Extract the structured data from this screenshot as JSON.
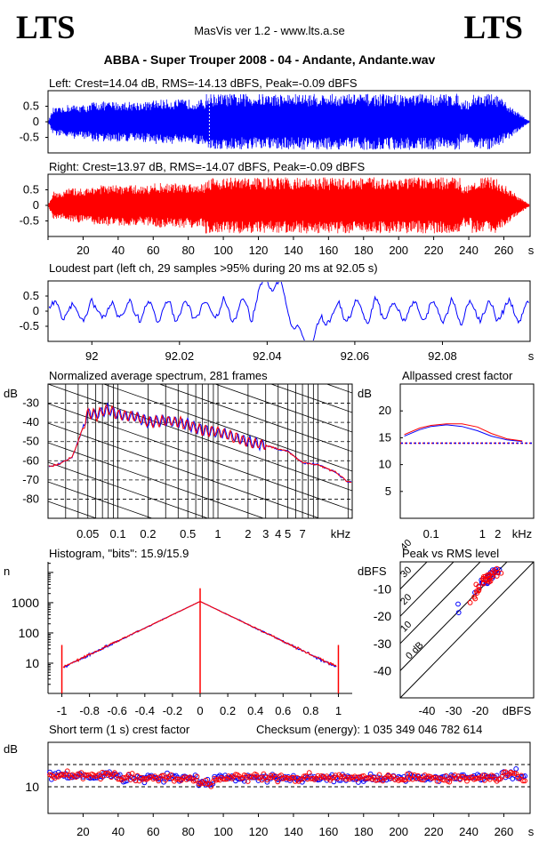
{
  "header": {
    "logo_left": "LTS",
    "logo_right": "LTS",
    "app_title": "MasVis ver 1.2 - www.lts.a.se",
    "file_title": "ABBA - Super Trouper 2008 - 04 - Andante, Andante.wav"
  },
  "colors": {
    "left": "#0000ff",
    "right": "#ff0000",
    "grid": "#000000"
  },
  "chart_data": [
    {
      "type": "area",
      "id": "left_waveform",
      "title": "Left: Crest=14.04 dB, RMS=-14.13 dBFS, Peak=-0.09 dBFS",
      "ylim": [
        -1,
        1
      ],
      "xlim": [
        0,
        275
      ],
      "yticks": [
        "0.5",
        "0",
        "-0.5"
      ],
      "marker_x": 92.05
    },
    {
      "type": "area",
      "id": "right_waveform",
      "title": "Right: Crest=13.97 dB, RMS=-14.07 dBFS, Peak=-0.09 dBFS",
      "ylim": [
        -1,
        1
      ],
      "xlim": [
        0,
        275
      ],
      "yticks": [
        "0.5",
        "0",
        "-0.5"
      ],
      "xticks": [
        "20",
        "40",
        "60",
        "80",
        "100",
        "120",
        "140",
        "160",
        "180",
        "200",
        "220",
        "240",
        "260"
      ],
      "xunit": "s"
    },
    {
      "type": "line",
      "id": "loudest_part",
      "title": "Loudest part (left  ch, 29 samples >95% during 20 ms at 92.05 s)",
      "ylim": [
        -1,
        1
      ],
      "xlim": [
        91.99,
        92.1
      ],
      "yticks": [
        "0.5",
        "0",
        "-0.5"
      ],
      "xticks": [
        "92",
        "92.02",
        "92.04",
        "92.06",
        "92.08"
      ],
      "xunit": "s"
    },
    {
      "type": "line",
      "id": "avg_spectrum",
      "title": "Normalized average spectrum, 281 frames",
      "ylabel": "dB",
      "ylim": [
        -90,
        -20
      ],
      "yticks": [
        "-30",
        "-40",
        "-50",
        "-60",
        "-70",
        "-80"
      ],
      "xscale": "log",
      "xlim_khz": [
        0.02,
        22
      ],
      "xticks": [
        "0.05",
        "0.1",
        "0.2",
        "0.5",
        "1",
        "2",
        "3",
        "4",
        "5",
        "7"
      ],
      "xunit": "kHz",
      "series_points_khz": [
        0.02,
        0.025,
        0.03,
        0.035,
        0.04,
        0.05,
        0.06,
        0.08,
        0.1,
        0.15,
        0.2,
        0.3,
        0.5,
        0.7,
        1,
        1.5,
        2,
        3,
        4,
        5,
        7,
        10,
        15,
        20
      ],
      "series_values_db": [
        -63,
        -62,
        -60,
        -58,
        -50,
        -35,
        -36,
        -33,
        -36,
        -37,
        -40,
        -39,
        -41,
        -44,
        -45,
        -48,
        -50,
        -52,
        -54,
        -55,
        -61,
        -62,
        -66,
        -71
      ]
    },
    {
      "type": "line",
      "id": "allpassed_crest",
      "title": "Allpassed crest factor",
      "ylabel": "dB",
      "ylim": [
        0,
        25
      ],
      "yticks": [
        "20",
        "15",
        "10",
        "5"
      ],
      "xscale": "log",
      "xticks": [
        "0.1",
        "1",
        "2"
      ],
      "xunit": "kHz",
      "series": [
        {
          "freq_khz": [
            0.03,
            0.06,
            0.1,
            0.2,
            0.4,
            0.8,
            1.5,
            3,
            6
          ],
          "values": [
            15.3,
            16.5,
            17.1,
            17.4,
            17.1,
            16.3,
            15.3,
            14.6,
            14.3
          ]
        },
        {
          "freq_khz": [
            0.03,
            0.06,
            0.1,
            0.2,
            0.4,
            0.8,
            1.5,
            3,
            6
          ],
          "values": [
            15.6,
            16.8,
            17.3,
            17.6,
            17.6,
            17.0,
            15.8,
            14.8,
            14.4
          ]
        }
      ],
      "reference_db": 14.0
    },
    {
      "type": "line",
      "id": "histogram",
      "title": "Histogram, \"bits\": 15.9/15.9",
      "ylabel": "n",
      "yscale": "log",
      "yticks": [
        "1000",
        "100",
        "10"
      ],
      "xlim": [
        -1.1,
        1.1
      ],
      "xticks": [
        "-1",
        "-0.8",
        "-0.6",
        "-0.4",
        "-0.2",
        "0",
        "0.2",
        "0.4",
        "0.6",
        "0.8",
        "1"
      ]
    },
    {
      "type": "scatter",
      "id": "peak_vs_rms",
      "title": "Peak vs RMS level",
      "ylabel": "dBFS",
      "xlabel": "dBFS",
      "yticks": [
        "-10",
        "-20",
        "-30",
        "-40"
      ],
      "xticks": [
        "-40",
        "-30",
        "-20"
      ],
      "diag_labels": [
        "40",
        "30",
        "20",
        "10",
        "0 dB"
      ]
    },
    {
      "type": "scatter",
      "id": "short_term_crest",
      "title": "Short term (1 s) crest factor",
      "checksum": "Checksum (energy):  1 035 349 046 782 614",
      "ylabel": "dB",
      "yticks": [
        "10"
      ],
      "xticks": [
        "20",
        "40",
        "60",
        "80",
        "100",
        "120",
        "140",
        "160",
        "180",
        "200",
        "220",
        "240",
        "260"
      ],
      "xunit": "s"
    }
  ]
}
